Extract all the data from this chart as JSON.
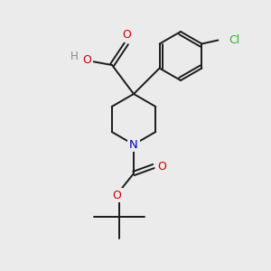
{
  "background_color": "#ebebeb",
  "bond_color": "#1a1a1a",
  "atom_colors": {
    "O": "#cc0000",
    "N": "#0000cc",
    "Cl": "#2db32d",
    "H": "#888888",
    "C": "#1a1a1a"
  },
  "figsize": [
    3.0,
    3.0
  ],
  "dpi": 100
}
